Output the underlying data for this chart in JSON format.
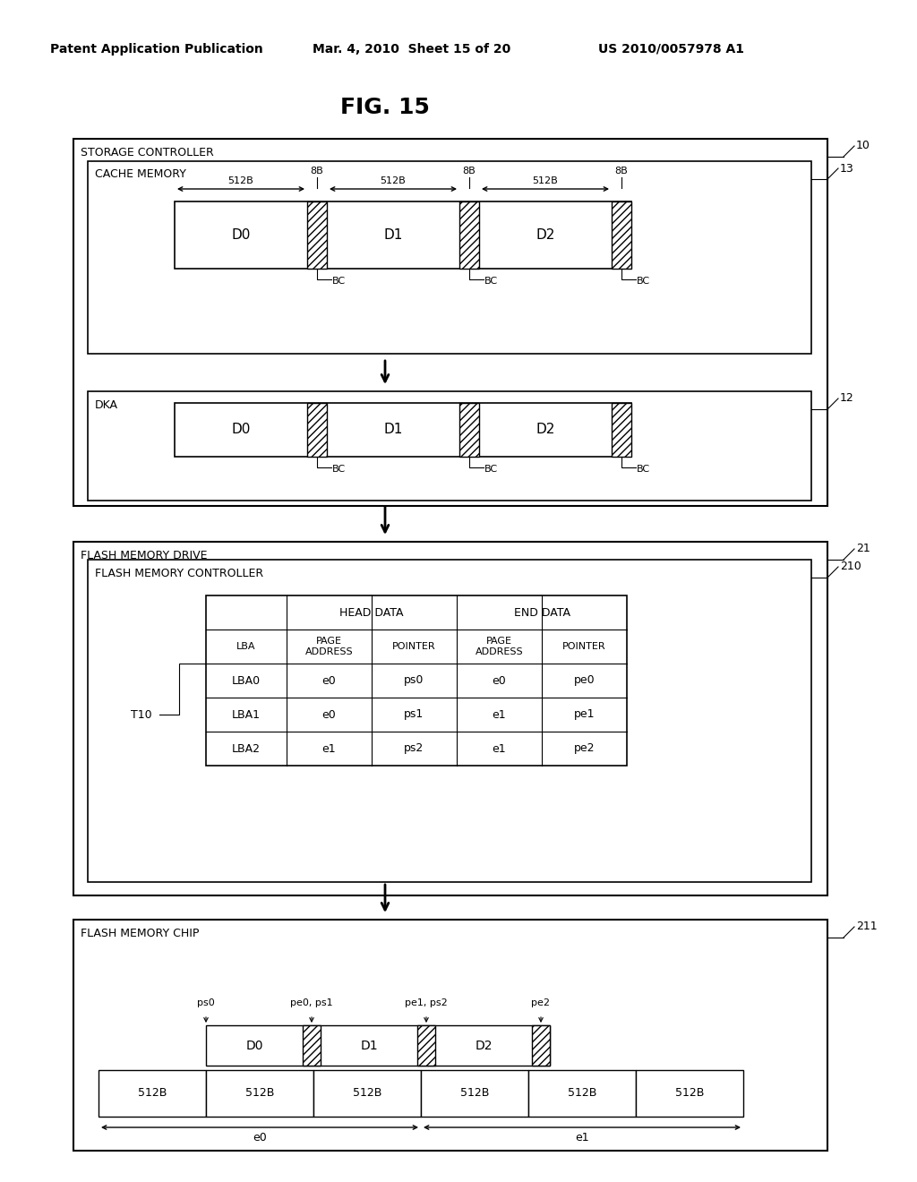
{
  "title": "FIG. 15",
  "header_left": "Patent Application Publication",
  "header_mid": "Mar. 4, 2010  Sheet 15 of 20",
  "header_right": "US 2010/0057978 A1",
  "bg_color": "#ffffff",
  "line_color": "#000000"
}
